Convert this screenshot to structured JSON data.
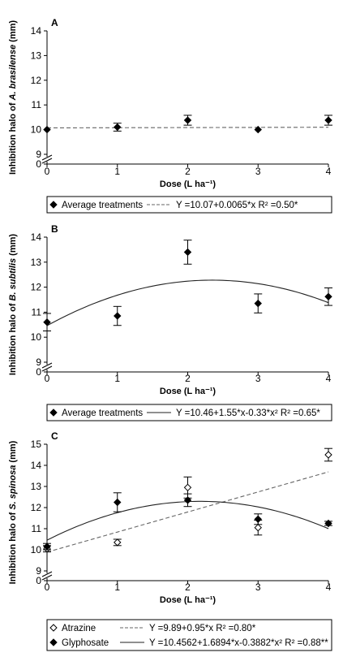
{
  "chart_data": [
    {
      "panel": "A",
      "type": "scatter",
      "xlabel": "Dose (L ha⁻¹)",
      "ylabel_prefix": "Inhibition halo of ",
      "ylabel_species": "A. brasilense",
      "ylabel_suffix": " (mm)",
      "x_ticks": [
        "0",
        "1",
        "2",
        "3",
        "4"
      ],
      "y_ticks": [
        "0",
        "9",
        "10",
        "11",
        "12",
        "13",
        "14"
      ],
      "xlim": [
        0,
        4
      ],
      "ylim": [
        9,
        14
      ],
      "axis_break": true,
      "series": [
        {
          "name": "Average treatments",
          "marker": "filled-diamond",
          "x": [
            0,
            1,
            2,
            3,
            4
          ],
          "y": [
            10.0,
            10.1,
            10.38,
            10.0,
            10.38
          ],
          "err": [
            0,
            0.16,
            0.2,
            0,
            0.2
          ],
          "fit": {
            "kind": "linear",
            "coef": [
              10.07,
              0.0065
            ],
            "style": "dashed",
            "equation": "Y =10.07+0.0065*x R² =0.50*"
          }
        }
      ]
    },
    {
      "panel": "B",
      "type": "scatter",
      "xlabel": "Dose (L ha⁻¹)",
      "ylabel_prefix": "Inhibition halo of ",
      "ylabel_species": "B. subtilis",
      "ylabel_suffix": " (mm)",
      "x_ticks": [
        "0",
        "1",
        "2",
        "3",
        "4"
      ],
      "y_ticks": [
        "0",
        "9",
        "10",
        "11",
        "12",
        "13",
        "14"
      ],
      "xlim": [
        0,
        4
      ],
      "ylim": [
        9,
        14
      ],
      "axis_break": true,
      "series": [
        {
          "name": "Average treatments",
          "marker": "filled-diamond",
          "x": [
            0,
            1,
            2,
            3,
            4
          ],
          "y": [
            10.6,
            10.85,
            13.4,
            11.35,
            11.62
          ],
          "err": [
            0.35,
            0.38,
            0.48,
            0.38,
            0.35
          ],
          "fit": {
            "kind": "quadratic",
            "coef": [
              10.46,
              1.55,
              -0.33
            ],
            "style": "solid",
            "equation": "Y =10.46+1.55*x-0.33*x² R² =0.65*"
          }
        }
      ]
    },
    {
      "panel": "C",
      "type": "scatter",
      "xlabel": "Dose (L ha⁻¹)",
      "ylabel_prefix": "Inhibition halo of ",
      "ylabel_species": "S. spinosa",
      "ylabel_suffix": " (mm)",
      "x_ticks": [
        "0",
        "1",
        "2",
        "3",
        "4"
      ],
      "y_ticks": [
        "0",
        "9",
        "10",
        "11",
        "12",
        "13",
        "14",
        "15"
      ],
      "xlim": [
        0,
        4
      ],
      "ylim": [
        9,
        15
      ],
      "axis_break": true,
      "series": [
        {
          "name": "Atrazine",
          "marker": "open-diamond",
          "x": [
            0,
            1,
            2,
            3,
            4
          ],
          "y": [
            10.05,
            10.35,
            12.95,
            11.05,
            14.5
          ],
          "err": [
            0.15,
            0.15,
            0.5,
            0.35,
            0.3
          ],
          "fit": {
            "kind": "linear",
            "coef": [
              9.89,
              0.95
            ],
            "style": "dashed",
            "equation": "Y =9.89+0.95*x R² =0.80*"
          }
        },
        {
          "name": "Glyphosate",
          "marker": "filled-diamond",
          "x": [
            0,
            1,
            2,
            3,
            4
          ],
          "y": [
            10.15,
            12.25,
            12.35,
            11.45,
            11.25
          ],
          "err": [
            0.15,
            0.45,
            0.3,
            0.25,
            0.1
          ],
          "fit": {
            "kind": "quadratic",
            "coef": [
              10.4562,
              1.6894,
              -0.3882
            ],
            "style": "solid",
            "equation": "Y =10.4562+1.6894*x-0.3882*x² R² =0.88**"
          }
        }
      ]
    }
  ]
}
